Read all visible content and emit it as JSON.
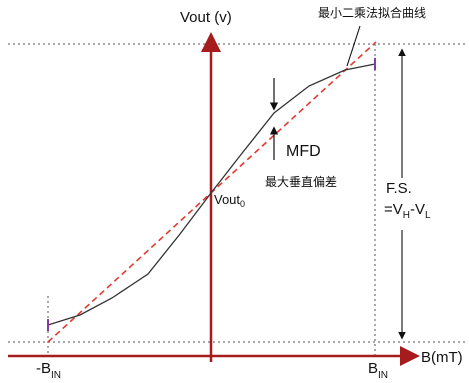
{
  "labels": {
    "y_axis": "Vout (v)",
    "x_axis": "B(mT)",
    "fit_line": "最小二乘法拟合曲线",
    "mfd": "MFD",
    "mfd_desc": "最大垂直偏差",
    "origin_main": "Vout",
    "origin_sub": "0",
    "fs_line1": "F.S.",
    "fs_line2_a": "=V",
    "fs_line2_b": "H",
    "fs_line2_c": "-V",
    "fs_line2_d": "L",
    "x_min_a": "-B",
    "x_min_b": "IN",
    "x_max_a": "B",
    "x_max_b": "IN"
  },
  "colors": {
    "axis": "#a61b1b",
    "fit": "#e03c31",
    "curve": "#333333",
    "guide": "#555555",
    "marker": "#8a3aa8"
  }
}
